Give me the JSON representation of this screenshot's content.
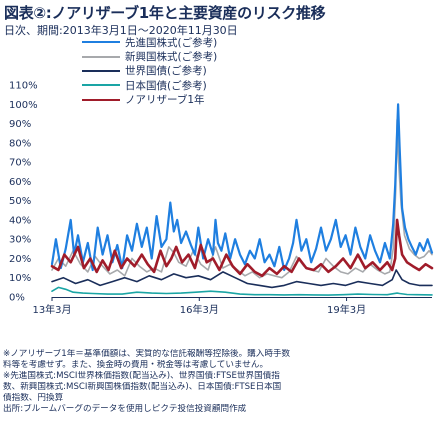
{
  "title": "図表②:ノアリザーブ1年と主要資産のリスク推移",
  "subtitle": "日次、期間:2013年3月1日〜2020年11月30日",
  "legend": [
    {
      "label": "先進国株式(ご参考)",
      "color": "#1f7fe0"
    },
    {
      "label": "新興国株式(ご参考)",
      "color": "#a7a9ac"
    },
    {
      "label": "世界国債(ご参考)",
      "color": "#1a2e5a"
    },
    {
      "label": "日本国債(ご参考)",
      "color": "#1aa5a5"
    },
    {
      "label": "ノアリザーブ1年",
      "color": "#a01c2a"
    }
  ],
  "notes": [
    "※ノアリザーブ1年＝基準価額は、実質的な信託報酬等控除後。購入時手数",
    "料等を考慮せず。また、換金時の費用・税金等は考慮していません。",
    "※先進国株式:MSCI世界株価指数(配当込み)、世界国債:FTSE世界国債指",
    "数、新興国株式:MSCI新興国株価指数(配当込み)、日本国債:FTSE日本国",
    "債指数、円換算",
    "出所:ブルームバーグのデータを使用しピクテ投信投資顧問作成"
  ],
  "chart_data": {
    "type": "line",
    "title": "図表②:ノアリザーブ1年と主要資産のリスク推移",
    "subtitle": "日次、期間:2013年3月1日〜2020年11月30日",
    "x_range": [
      "2013-03",
      "2020-11"
    ],
    "x_tick_labels": [
      "13年3月",
      "16年3月",
      "19年3月"
    ],
    "x_ticks": [
      2013.17,
      2016.17,
      2019.17
    ],
    "ylim": [
      0,
      110
    ],
    "y_ticks": [
      0,
      10,
      20,
      30,
      40,
      50,
      60,
      70,
      80,
      90,
      100,
      110
    ],
    "y_tick_labels": [
      "0%",
      "10%",
      "20%",
      "30%",
      "40%",
      "50%",
      "60%",
      "70%",
      "80%",
      "90%",
      "100%",
      "110%"
    ],
    "grid": false,
    "legend_position": "top",
    "series": [
      {
        "name": "新興国株式(ご参考)",
        "color": "#a7a9ac",
        "width": 1.6,
        "x": [
          2013.17,
          2013.3,
          2013.45,
          2013.6,
          2013.75,
          2013.9,
          2014.05,
          2014.2,
          2014.35,
          2014.5,
          2014.65,
          2014.8,
          2014.95,
          2015.1,
          2015.25,
          2015.4,
          2015.55,
          2015.65,
          2015.75,
          2015.9,
          2016.05,
          2016.2,
          2016.35,
          2016.5,
          2016.65,
          2016.8,
          2016.95,
          2017.1,
          2017.25,
          2017.4,
          2017.55,
          2017.7,
          2017.85,
          2018.0,
          2018.15,
          2018.3,
          2018.45,
          2018.6,
          2018.75,
          2018.9,
          2019.05,
          2019.2,
          2019.35,
          2019.5,
          2019.65,
          2019.8,
          2019.95,
          2020.05,
          2020.12,
          2020.17,
          2020.2,
          2020.23,
          2020.28,
          2020.35,
          2020.45,
          2020.55,
          2020.65,
          2020.75,
          2020.85,
          2020.91
        ],
        "y": [
          14,
          20,
          16,
          24,
          17,
          13,
          21,
          16,
          12,
          14,
          11,
          20,
          16,
          13,
          15,
          13,
          26,
          23,
          18,
          16,
          24,
          17,
          14,
          26,
          15,
          17,
          14,
          11,
          13,
          10,
          12,
          11,
          10,
          13,
          21,
          16,
          14,
          13,
          20,
          16,
          13,
          12,
          15,
          13,
          17,
          14,
          12,
          13,
          25,
          55,
          92,
          70,
          48,
          32,
          25,
          22,
          20,
          21,
          24,
          22
        ]
      },
      {
        "name": "先進国株式(ご参考)",
        "color": "#1f7fe0",
        "width": 2.2,
        "x": [
          2013.17,
          2013.25,
          2013.35,
          2013.45,
          2013.55,
          2013.62,
          2013.7,
          2013.8,
          2013.9,
          2014.0,
          2014.1,
          2014.2,
          2014.3,
          2014.4,
          2014.5,
          2014.6,
          2014.7,
          2014.8,
          2014.9,
          2015.0,
          2015.1,
          2015.2,
          2015.3,
          2015.4,
          2015.5,
          2015.58,
          2015.65,
          2015.72,
          2015.8,
          2015.9,
          2016.0,
          2016.08,
          2016.15,
          2016.25,
          2016.35,
          2016.45,
          2016.5,
          2016.55,
          2016.62,
          2016.7,
          2016.8,
          2016.9,
          2017.0,
          2017.1,
          2017.2,
          2017.3,
          2017.4,
          2017.5,
          2017.6,
          2017.7,
          2017.8,
          2017.9,
          2018.0,
          2018.08,
          2018.15,
          2018.25,
          2018.35,
          2018.45,
          2018.55,
          2018.65,
          2018.75,
          2018.85,
          2018.95,
          2019.05,
          2019.15,
          2019.25,
          2019.35,
          2019.45,
          2019.55,
          2019.65,
          2019.75,
          2019.85,
          2019.95,
          2020.05,
          2020.12,
          2020.16,
          2020.19,
          2020.22,
          2020.25,
          2020.3,
          2020.36,
          2020.43,
          2020.5,
          2020.58,
          2020.66,
          2020.74,
          2020.82,
          2020.91
        ],
        "y": [
          17,
          30,
          15,
          25,
          40,
          22,
          32,
          18,
          28,
          14,
          36,
          22,
          32,
          18,
          27,
          15,
          32,
          24,
          38,
          26,
          36,
          20,
          42,
          26,
          30,
          49,
          34,
          40,
          28,
          34,
          27,
          22,
          36,
          20,
          30,
          22,
          40,
          28,
          24,
          33,
          20,
          30,
          22,
          17,
          24,
          20,
          30,
          18,
          22,
          16,
          26,
          14,
          20,
          28,
          40,
          24,
          30,
          18,
          25,
          36,
          24,
          30,
          40,
          26,
          32,
          22,
          36,
          26,
          20,
          32,
          24,
          18,
          28,
          20,
          38,
          58,
          80,
          100,
          78,
          46,
          36,
          30,
          26,
          22,
          28,
          24,
          30,
          23
        ]
      },
      {
        "name": "世界国債(ご参考)",
        "color": "#1a2e5a",
        "width": 1.6,
        "x": [
          2013.17,
          2013.4,
          2013.65,
          2013.9,
          2014.15,
          2014.4,
          2014.65,
          2014.9,
          2015.15,
          2015.4,
          2015.65,
          2015.9,
          2016.15,
          2016.4,
          2016.65,
          2016.9,
          2017.15,
          2017.4,
          2017.65,
          2017.9,
          2018.15,
          2018.4,
          2018.65,
          2018.9,
          2019.15,
          2019.4,
          2019.65,
          2019.9,
          2020.1,
          2020.18,
          2020.23,
          2020.3,
          2020.45,
          2020.65,
          2020.91
        ],
        "y": [
          8,
          10,
          7,
          9,
          6,
          8,
          10,
          8,
          11,
          9,
          12,
          10,
          11,
          9,
          13,
          10,
          7,
          6,
          5,
          6,
          8,
          7,
          6,
          7,
          6,
          8,
          7,
          6,
          9,
          14,
          12,
          9,
          7,
          6,
          6
        ]
      },
      {
        "name": "ノアリザーブ1年",
        "color": "#a01c2a",
        "width": 2.6,
        "x": [
          2013.17,
          2013.3,
          2013.42,
          2013.55,
          2013.7,
          2013.82,
          2013.95,
          2014.08,
          2014.2,
          2014.32,
          2014.45,
          2014.58,
          2014.7,
          2014.85,
          2015.0,
          2015.12,
          2015.25,
          2015.38,
          2015.5,
          2015.6,
          2015.7,
          2015.82,
          2015.95,
          2016.08,
          2016.2,
          2016.32,
          2016.45,
          2016.58,
          2016.72,
          2016.85,
          2017.0,
          2017.15,
          2017.3,
          2017.45,
          2017.6,
          2017.75,
          2017.9,
          2018.05,
          2018.2,
          2018.35,
          2018.5,
          2018.65,
          2018.8,
          2018.95,
          2019.1,
          2019.25,
          2019.4,
          2019.55,
          2019.7,
          2019.85,
          2020.0,
          2020.1,
          2020.16,
          2020.2,
          2020.24,
          2020.3,
          2020.4,
          2020.52,
          2020.65,
          2020.78,
          2020.91
        ],
        "y": [
          16,
          14,
          22,
          18,
          26,
          15,
          20,
          13,
          19,
          14,
          24,
          15,
          20,
          16,
          22,
          17,
          13,
          24,
          16,
          20,
          26,
          18,
          22,
          15,
          27,
          18,
          20,
          14,
          22,
          16,
          12,
          17,
          13,
          11,
          15,
          12,
          16,
          13,
          20,
          15,
          14,
          17,
          13,
          16,
          20,
          15,
          22,
          15,
          18,
          14,
          18,
          14,
          20,
          40,
          32,
          22,
          18,
          16,
          14,
          17,
          15
        ]
      },
      {
        "name": "日本国債(ご参考)",
        "color": "#1aa5a5",
        "width": 1.6,
        "x": [
          2013.17,
          2013.3,
          2013.45,
          2013.6,
          2013.8,
          2014.0,
          2014.3,
          2014.6,
          2014.9,
          2015.2,
          2015.5,
          2015.8,
          2016.1,
          2016.4,
          2016.7,
          2017.0,
          2017.3,
          2017.6,
          2017.9,
          2018.2,
          2018.5,
          2018.8,
          2019.1,
          2019.4,
          2019.7,
          2020.0,
          2020.2,
          2020.25,
          2020.4,
          2020.6,
          2020.91
        ],
        "y": [
          3,
          5,
          4,
          2.5,
          2,
          1.8,
          1.5,
          1.5,
          2.5,
          2,
          1.8,
          2,
          2.5,
          3,
          2.5,
          1.5,
          1.2,
          1.2,
          1.1,
          1.2,
          1.1,
          1,
          1.2,
          1.5,
          1.3,
          1.2,
          2,
          1.8,
          1.3,
          1.2,
          1.1
        ]
      }
    ]
  }
}
